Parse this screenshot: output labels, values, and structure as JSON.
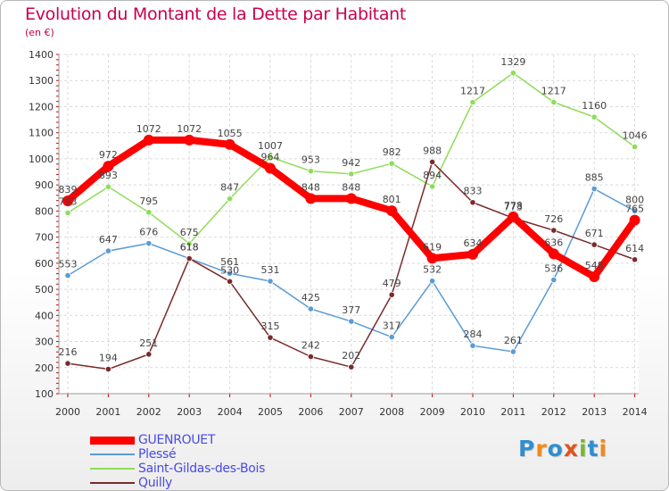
{
  "title": "Evolution du Montant de la Dette par Habitant",
  "subtitle": "(en €)",
  "brand": "Proxiti",
  "chart_data": {
    "type": "line",
    "title": "Evolution du Montant de la Dette par Habitant",
    "subtitle": "(en €)",
    "xlabel": "",
    "ylabel": "",
    "x": [
      "2000",
      "2001",
      "2002",
      "2003",
      "2004",
      "2005",
      "2006",
      "2007",
      "2008",
      "2009",
      "2010",
      "2011",
      "2012",
      "2013",
      "2014"
    ],
    "ylim": [
      100,
      1400
    ],
    "yticks": [
      100,
      200,
      300,
      400,
      500,
      600,
      700,
      800,
      900,
      1000,
      1100,
      1200,
      1300,
      1400
    ],
    "grid": true,
    "legend_position": "bottom-left",
    "series": [
      {
        "name": "GUENROUET",
        "color": "#ff0000",
        "values": [
          839,
          972,
          1072,
          1072,
          1055,
          964,
          848,
          848,
          801,
          619,
          634,
          778,
          636,
          548,
          765
        ]
      },
      {
        "name": "Plessé",
        "color": "#5b9bd5",
        "values": [
          553,
          647,
          676,
          618,
          561,
          531,
          425,
          377,
          317,
          532,
          284,
          261,
          536,
          885,
          800
        ]
      },
      {
        "name": "Saint-Gildas-des-Bois",
        "color": "#8fdc5a",
        "values": [
          793,
          893,
          795,
          675,
          847,
          1007,
          953,
          942,
          982,
          894,
          1217,
          1329,
          1217,
          1160,
          1046
        ]
      },
      {
        "name": "Quilly",
        "color": "#7a2a2a",
        "values": [
          216,
          194,
          251,
          618,
          530,
          315,
          242,
          202,
          479,
          988,
          833,
          773,
          726,
          671,
          614
        ]
      }
    ]
  }
}
